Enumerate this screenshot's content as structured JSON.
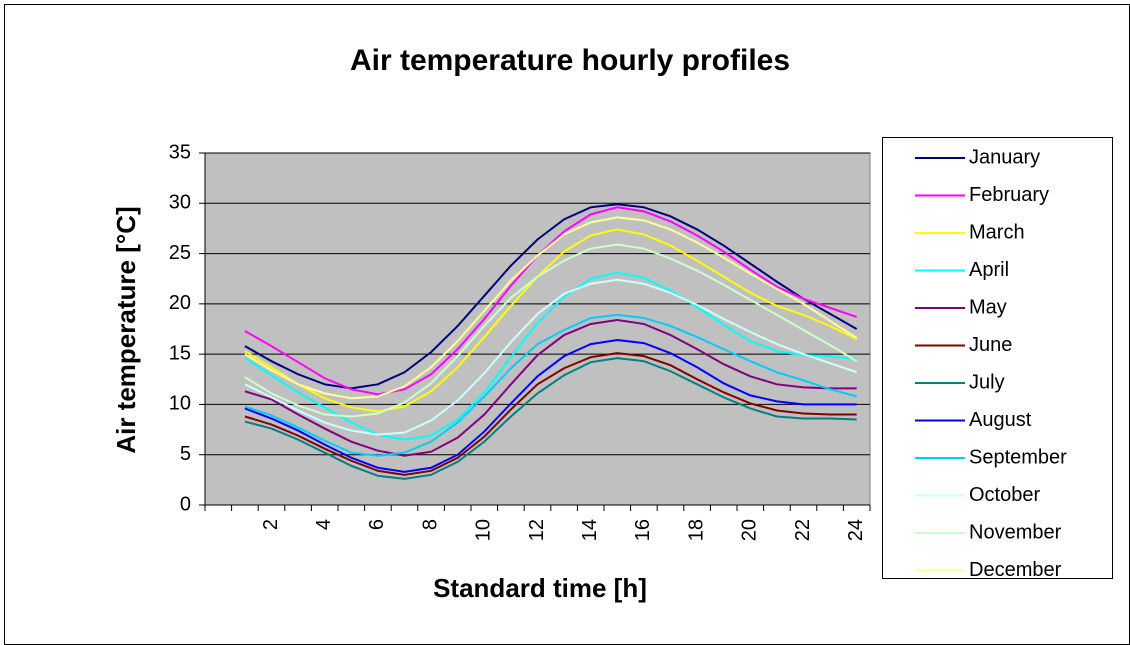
{
  "chart_data": {
    "type": "line",
    "title": "Air temperature hourly profiles",
    "x_label": "Standard time [h]",
    "y_label": "Air temperature [°C]",
    "categories": [
      null,
      null,
      "2",
      null,
      "4",
      null,
      "6",
      null,
      "8",
      null,
      "10",
      null,
      "12",
      null,
      "14",
      null,
      "16",
      null,
      "18",
      null,
      "20",
      null,
      "22",
      null,
      "24"
    ],
    "ylim": [
      0,
      35
    ],
    "yticks": [
      0,
      5,
      10,
      15,
      20,
      25,
      30,
      35
    ],
    "grid": true,
    "legend": "right",
    "series": [
      {
        "name": "January",
        "color": "#000080",
        "values": [
          null,
          15.8,
          14.3,
          13.0,
          12.0,
          11.6,
          12.0,
          13.2,
          15.2,
          17.8,
          20.8,
          23.8,
          26.4,
          28.4,
          29.6,
          29.9,
          29.6,
          28.7,
          27.4,
          25.8,
          24.0,
          22.2,
          20.5,
          19.0,
          17.5
        ]
      },
      {
        "name": "February",
        "color": "#ff00ff",
        "values": [
          null,
          17.3,
          15.8,
          14.2,
          12.6,
          11.5,
          11.0,
          11.5,
          13.0,
          15.5,
          18.5,
          21.8,
          24.8,
          27.2,
          28.9,
          29.6,
          29.2,
          28.2,
          26.8,
          25.2,
          23.4,
          21.7,
          20.5,
          19.6,
          18.7
        ]
      },
      {
        "name": "March",
        "color": "#ffff00",
        "values": [
          null,
          15.3,
          13.7,
          12.0,
          10.6,
          9.7,
          9.3,
          9.8,
          11.3,
          13.7,
          16.7,
          19.8,
          22.7,
          25.2,
          26.8,
          27.4,
          26.9,
          25.8,
          24.3,
          22.7,
          21.1,
          19.8,
          18.9,
          17.8,
          16.5
        ]
      },
      {
        "name": "April",
        "color": "#00ffff",
        "values": [
          null,
          14.6,
          12.9,
          11.2,
          9.7,
          8.2,
          7.0,
          6.5,
          6.9,
          8.5,
          11.2,
          14.7,
          18.1,
          20.7,
          22.5,
          23.1,
          22.6,
          21.3,
          19.7,
          17.9,
          16.3,
          15.3,
          14.9,
          14.8,
          14.5
        ]
      },
      {
        "name": "May",
        "color": "#800080",
        "values": [
          null,
          11.3,
          10.5,
          9.0,
          7.6,
          6.3,
          5.4,
          4.9,
          5.3,
          6.7,
          9.0,
          12.0,
          14.9,
          16.9,
          18.0,
          18.4,
          18.0,
          16.9,
          15.5,
          14.0,
          12.8,
          12.0,
          11.7,
          11.6,
          11.6
        ]
      },
      {
        "name": "June",
        "color": "#800000",
        "values": [
          null,
          8.8,
          8.0,
          6.9,
          5.6,
          4.4,
          3.4,
          3.0,
          3.4,
          4.7,
          6.8,
          9.5,
          12.0,
          13.6,
          14.7,
          15.1,
          14.8,
          13.9,
          12.5,
          11.2,
          10.1,
          9.4,
          9.1,
          9.0,
          9.0
        ]
      },
      {
        "name": "July",
        "color": "#008080",
        "values": [
          null,
          8.3,
          7.6,
          6.5,
          5.2,
          3.9,
          2.9,
          2.6,
          3.0,
          4.3,
          6.3,
          8.8,
          11.1,
          12.9,
          14.2,
          14.6,
          14.3,
          13.3,
          12.0,
          10.7,
          9.6,
          8.8,
          8.6,
          8.6,
          8.5
        ]
      },
      {
        "name": "August",
        "color": "#0000ff",
        "values": [
          null,
          9.6,
          8.6,
          7.4,
          6.0,
          4.7,
          3.7,
          3.3,
          3.7,
          5.0,
          7.3,
          10.1,
          12.8,
          14.8,
          16.0,
          16.4,
          16.1,
          15.1,
          13.7,
          12.1,
          10.9,
          10.3,
          10.0,
          10.0,
          10.0
        ]
      },
      {
        "name": "September",
        "color": "#00ccff",
        "values": [
          null,
          9.8,
          8.9,
          7.7,
          6.4,
          5.2,
          4.9,
          5.2,
          6.3,
          8.2,
          10.8,
          13.6,
          16.0,
          17.4,
          18.6,
          18.9,
          18.6,
          17.8,
          16.7,
          15.5,
          14.3,
          13.2,
          12.4,
          11.5,
          10.8
        ]
      },
      {
        "name": "October",
        "color": "#ccffff",
        "values": [
          null,
          12.0,
          10.7,
          9.4,
          8.2,
          7.4,
          7.0,
          7.2,
          8.4,
          10.4,
          13.1,
          16.2,
          19.0,
          21.0,
          22.0,
          22.4,
          22.0,
          21.1,
          19.9,
          18.5,
          17.2,
          16.0,
          15.0,
          14.1,
          13.2
        ]
      },
      {
        "name": "November",
        "color": "#ccffcc",
        "values": [
          null,
          12.7,
          11.1,
          9.9,
          9.0,
          8.8,
          9.1,
          10.2,
          12.1,
          14.8,
          17.8,
          20.6,
          22.7,
          24.3,
          25.5,
          25.9,
          25.5,
          24.5,
          23.3,
          21.9,
          20.4,
          18.9,
          17.4,
          15.9,
          14.3
        ]
      },
      {
        "name": "December",
        "color": "#ffff99",
        "values": [
          null,
          15.0,
          13.4,
          12.0,
          11.1,
          10.6,
          10.8,
          11.8,
          13.7,
          16.3,
          19.3,
          22.3,
          24.8,
          26.9,
          28.1,
          28.6,
          28.3,
          27.4,
          26.1,
          24.6,
          23.0,
          21.5,
          20.0,
          18.3,
          16.6
        ]
      }
    ]
  }
}
